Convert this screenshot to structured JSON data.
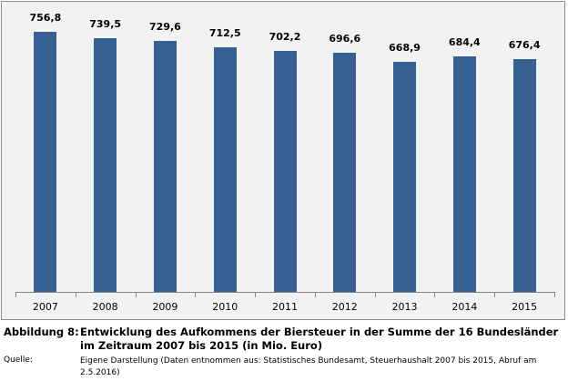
{
  "chart_data": {
    "type": "bar",
    "title": "Entwicklung des Aufkommens der Biersteuer in der Summe der 16 Bundesländer im Zeitraum 2007 bis 2015 (in Mio. Euro)",
    "xlabel": "",
    "ylabel": "",
    "categories": [
      "2007",
      "2008",
      "2009",
      "2010",
      "2011",
      "2012",
      "2013",
      "2014",
      "2015"
    ],
    "values": [
      756.8,
      739.5,
      729.6,
      712.5,
      702.2,
      696.6,
      668.9,
      684.4,
      676.4
    ],
    "value_labels": [
      "756,8",
      "739,5",
      "729,6",
      "712,5",
      "702,2",
      "696,6",
      "668,9",
      "684,4",
      "676,4"
    ],
    "ylim": [
      0,
      800
    ],
    "grid": false,
    "legend": null,
    "bar_color": "#376092",
    "background_color": "#f2f2f2"
  },
  "caption": {
    "figure_label": "Abbildung 8:",
    "figure_title": "Entwicklung des Aufkommens der Biersteuer in der Summe der 16 Bundesländer im Zeitraum 2007 bis 2015 (in Mio. Euro)",
    "source_label": "Quelle:",
    "source_text": "Eigene Darstellung (Daten entnommen aus: Statistisches Bundesamt, Steuerhaushalt 2007 bis 2015, Abruf am 2.5.2016)"
  }
}
